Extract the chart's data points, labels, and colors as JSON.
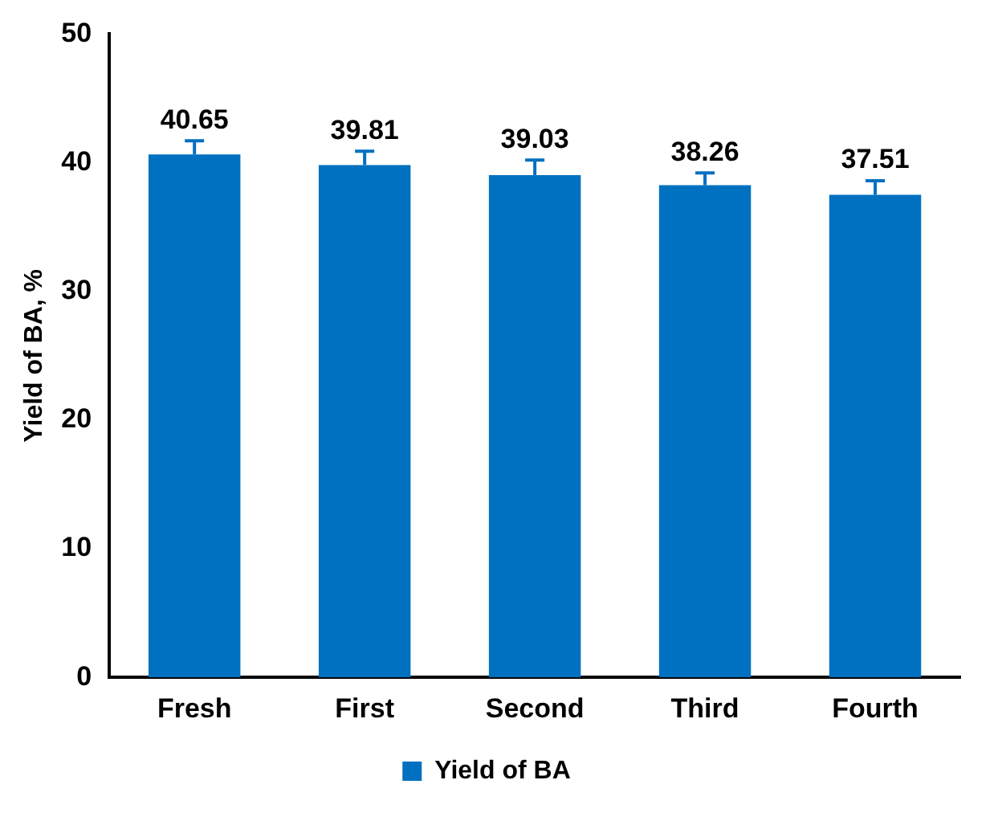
{
  "chart_data": {
    "type": "bar",
    "ylabel": "Yield of BA, %",
    "categories": [
      "Fresh",
      "First",
      "Second",
      "Third",
      "Fourth"
    ],
    "series": [
      {
        "name": "Yield of BA",
        "color": "#0070c0",
        "values": [
          40.65,
          39.81,
          39.03,
          38.26,
          37.51
        ],
        "errors": [
          [
            40.65,
            41.7
          ],
          [
            39.81,
            40.9
          ],
          [
            39.03,
            40.2
          ],
          [
            38.26,
            39.2
          ],
          [
            37.51,
            38.6
          ]
        ]
      }
    ],
    "ylim": [
      0,
      50
    ],
    "yticks": [
      0,
      10,
      20,
      30,
      40,
      50
    ],
    "data_labels": true,
    "legend": "bottom",
    "grid": false
  }
}
